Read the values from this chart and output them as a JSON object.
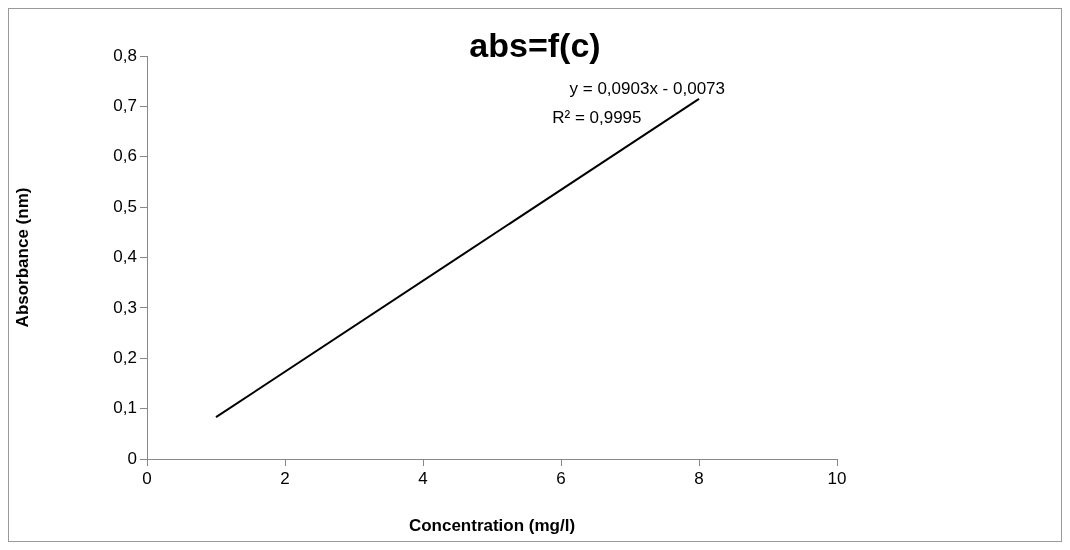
{
  "chart_data": {
    "type": "line",
    "title": "abs=f(c)",
    "xlabel": "Concentration (mg/l)",
    "ylabel": "Absorbance (nm)",
    "annotations": [
      "y = 0,0903x - 0,0073",
      "R² = 0,9995"
    ],
    "x": [
      1,
      8
    ],
    "series": [
      {
        "color": "#000000",
        "values": [
          0.083,
          0.715
        ]
      }
    ],
    "xlim": [
      0,
      10
    ],
    "xticks": [
      0,
      2,
      4,
      6,
      8,
      10
    ],
    "ylim": [
      0,
      0.8
    ],
    "yticks": [
      0,
      {
        "value": 0.1,
        "label": "0,1"
      },
      {
        "value": 0.2,
        "label": "0,2"
      },
      {
        "value": 0.3,
        "label": "0,3"
      },
      {
        "value": 0.4,
        "label": "0,4"
      },
      {
        "value": 0.5,
        "label": "0,5"
      },
      {
        "value": 0.6,
        "label": "0,6"
      },
      {
        "value": 0.7,
        "label": "0,7"
      },
      {
        "value": 0.8,
        "label": "0,8"
      }
    ],
    "grid": false,
    "legend": false,
    "marker": "none",
    "line_style": "solid"
  }
}
